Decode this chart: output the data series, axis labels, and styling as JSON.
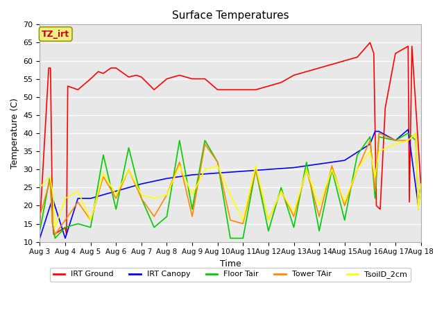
{
  "title": "Surface Temperatures",
  "xlabel": "Time",
  "ylabel": "Temperature (C)",
  "ylim": [
    10,
    70
  ],
  "x_tick_labels": [
    "Aug 3",
    "Aug 4",
    "Aug 5",
    "Aug 6",
    "Aug 7",
    "Aug 8",
    "Aug 9",
    "Aug 10",
    "Aug 11",
    "Aug 12",
    "Aug 13",
    "Aug 14",
    "Aug 15",
    "Aug 16",
    "Aug 17",
    "Aug 18"
  ],
  "tz_label": "TZ_irt",
  "tz_bg_color": "#eeee88",
  "tz_text_color": "#cc0000",
  "tz_edge_color": "#999900",
  "bg_color": "#e8e8e8",
  "grid_color": "#ffffff",
  "fig_bg": "#ffffff",
  "series": {
    "IRT Ground": {
      "color": "#ff0000",
      "x": [
        0.0,
        0.35,
        0.42,
        0.5,
        0.52,
        0.55,
        1.0,
        1.05,
        1.1,
        1.5,
        2.0,
        2.3,
        2.5,
        2.8,
        3.0,
        3.3,
        3.5,
        3.8,
        4.0,
        4.5,
        5.0,
        5.5,
        6.0,
        6.5,
        7.0,
        7.5,
        8.0,
        8.5,
        9.0,
        9.5,
        10.0,
        10.5,
        11.0,
        11.5,
        12.0,
        12.5,
        13.0,
        13.15,
        13.25,
        13.4,
        13.6,
        14.0,
        14.5,
        14.55,
        14.65,
        15.0
      ],
      "y": [
        15.0,
        58.0,
        58.0,
        15.0,
        14.0,
        12.0,
        14.0,
        12.0,
        53.0,
        52.0,
        55.0,
        57.0,
        56.5,
        58.0,
        58.0,
        56.5,
        55.5,
        56.0,
        55.5,
        52.0,
        55.0,
        56.0,
        55.0,
        55.0,
        52.0,
        52.0,
        52.0,
        52.0,
        53.0,
        54.0,
        56.0,
        57.0,
        58.0,
        59.0,
        60.0,
        61.0,
        65.0,
        62.0,
        20.0,
        19.0,
        47.0,
        62.0,
        64.0,
        21.0,
        64.0,
        26.0
      ]
    },
    "IRT Canopy": {
      "color": "#0000ff",
      "x": [
        0.0,
        0.5,
        1.0,
        1.5,
        2.0,
        3.0,
        4.0,
        5.0,
        5.5,
        6.0,
        7.0,
        8.0,
        9.0,
        10.0,
        11.0,
        12.0,
        13.0,
        13.2,
        13.35,
        14.0,
        14.5,
        14.9,
        15.0
      ],
      "y": [
        11.0,
        22.0,
        11.0,
        22.0,
        22.0,
        24.0,
        26.0,
        27.5,
        28.0,
        28.5,
        29.0,
        29.5,
        30.0,
        30.5,
        31.5,
        32.5,
        37.0,
        40.5,
        40.5,
        38.0,
        41.0,
        20.0,
        26.0
      ]
    },
    "Floor Tair": {
      "color": "#00cc00",
      "x": [
        0.0,
        0.4,
        0.5,
        0.6,
        1.0,
        1.5,
        2.0,
        2.5,
        3.0,
        3.5,
        4.0,
        4.5,
        5.0,
        5.5,
        6.0,
        6.5,
        7.0,
        7.5,
        8.0,
        8.5,
        9.0,
        9.5,
        10.0,
        10.5,
        11.0,
        11.5,
        12.0,
        12.5,
        13.0,
        13.2,
        13.35,
        14.0,
        14.5,
        14.8,
        14.9,
        15.0
      ],
      "y": [
        13.0,
        28.0,
        15.0,
        11.0,
        14.0,
        15.0,
        14.0,
        34.0,
        19.0,
        36.0,
        22.0,
        14.0,
        17.0,
        38.0,
        19.0,
        38.0,
        32.0,
        11.0,
        11.0,
        30.0,
        13.0,
        25.0,
        14.0,
        32.0,
        13.0,
        30.0,
        16.0,
        34.0,
        39.0,
        22.0,
        39.0,
        38.0,
        40.0,
        38.0,
        20.0,
        25.0
      ]
    },
    "Tower TAir": {
      "color": "#ff8800",
      "x": [
        0.0,
        0.4,
        0.5,
        0.6,
        1.0,
        1.5,
        2.0,
        2.5,
        3.0,
        3.5,
        4.0,
        4.5,
        5.0,
        5.5,
        6.0,
        6.5,
        7.0,
        7.5,
        8.0,
        8.5,
        9.0,
        9.5,
        10.0,
        10.5,
        11.0,
        11.5,
        12.0,
        12.5,
        13.0,
        13.2,
        13.35,
        14.0,
        14.5,
        14.8,
        14.9,
        15.0
      ],
      "y": [
        17.0,
        27.0,
        15.0,
        12.0,
        16.0,
        21.0,
        16.0,
        28.0,
        22.0,
        30.0,
        22.0,
        17.0,
        23.0,
        32.0,
        17.0,
        37.0,
        32.0,
        16.0,
        15.0,
        30.0,
        16.0,
        24.0,
        17.0,
        30.0,
        17.0,
        31.0,
        20.0,
        30.0,
        38.0,
        24.0,
        40.0,
        38.0,
        38.0,
        40.0,
        19.0,
        26.0
      ]
    },
    "TsoilD_2cm": {
      "color": "#ffff00",
      "x": [
        0.0,
        0.4,
        0.5,
        0.6,
        1.0,
        1.5,
        2.0,
        2.5,
        3.0,
        3.5,
        4.0,
        4.5,
        5.0,
        5.5,
        6.0,
        6.5,
        7.0,
        7.5,
        8.0,
        8.5,
        9.0,
        9.5,
        10.0,
        10.5,
        11.0,
        11.5,
        12.0,
        12.5,
        13.0,
        13.2,
        13.35,
        14.0,
        14.5,
        14.8,
        14.9,
        15.0
      ],
      "y": [
        25.0,
        28.0,
        24.0,
        14.0,
        22.0,
        24.0,
        16.0,
        29.0,
        23.0,
        30.0,
        23.0,
        22.0,
        23.0,
        31.0,
        23.0,
        30.0,
        31.0,
        23.0,
        16.0,
        31.0,
        16.0,
        24.0,
        18.0,
        30.0,
        20.0,
        30.0,
        21.0,
        30.0,
        35.0,
        28.0,
        35.0,
        37.0,
        38.0,
        40.0,
        19.0,
        26.0
      ]
    }
  },
  "legend": [
    {
      "label": "IRT Ground",
      "color": "#ff0000"
    },
    {
      "label": "IRT Canopy",
      "color": "#0000ff"
    },
    {
      "label": "Floor Tair",
      "color": "#00cc00"
    },
    {
      "label": "Tower TAir",
      "color": "#ff8800"
    },
    {
      "label": "TsoilD_2cm",
      "color": "#ffff00"
    }
  ]
}
